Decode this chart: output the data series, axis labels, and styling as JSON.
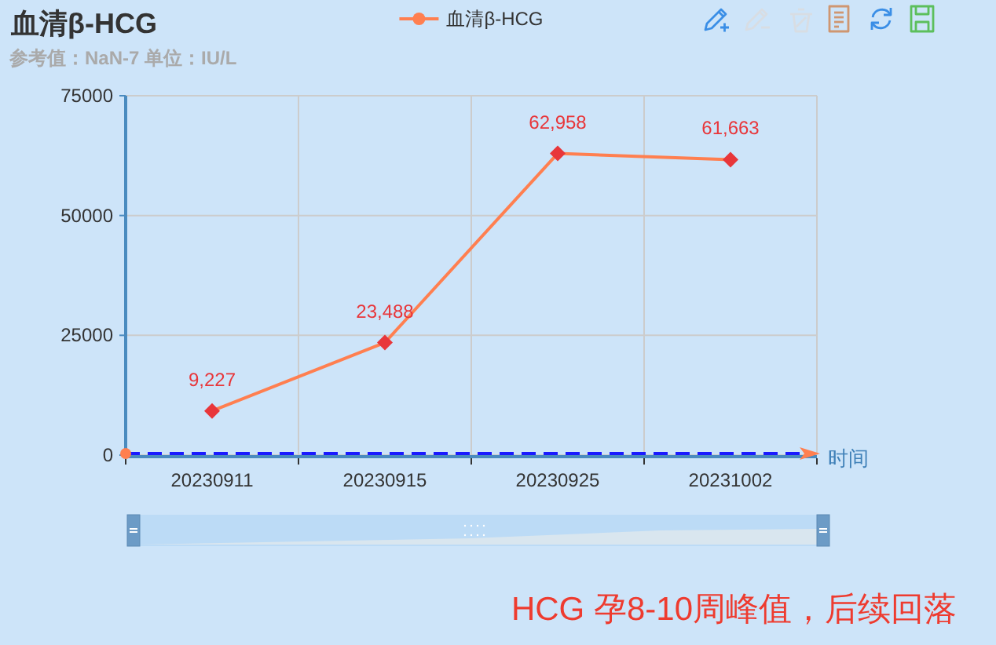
{
  "chart_data": {
    "type": "line",
    "title": "血清β-HCG",
    "subtitle": "参考值：NaN-7 单位：IU/L",
    "xlabel": "时间",
    "categories": [
      "20230911",
      "20230915",
      "20230925",
      "20231002"
    ],
    "series": [
      {
        "name": "血清β-HCG",
        "color": "#ff7f50",
        "colors": [
          "#e8363a",
          "#e8363a",
          "#e8363a",
          "#e8363a"
        ],
        "values": [
          9227,
          23488,
          62958,
          61663
        ],
        "value_labels": [
          "9,227",
          "23,488",
          "62,958",
          "61,663"
        ]
      }
    ],
    "ylim": [
      0,
      75000
    ],
    "yticks": [
      0,
      25000,
      50000,
      75000
    ],
    "grid": true,
    "legend": "top",
    "marker": "diamond",
    "ref_lines": [
      {
        "axis": "y",
        "value": 0,
        "color": "#1a1aff",
        "line_style": "dashed"
      }
    ],
    "annotations": [
      "HCG 孕8-10周峰值，后续回落"
    ]
  }
}
